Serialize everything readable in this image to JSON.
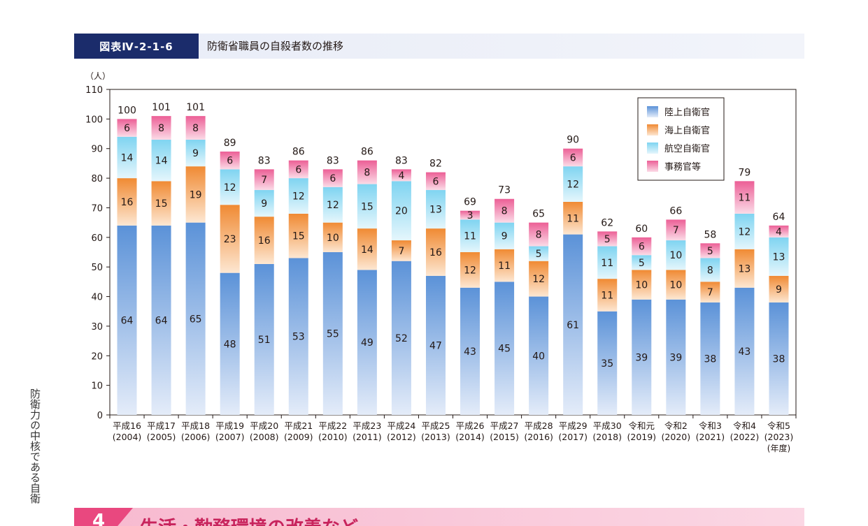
{
  "figure": {
    "badge": "図表Ⅳ-2-1-6",
    "title": "防衛省職員の自殺者数の推移"
  },
  "side_text": "防衛力の中核である自衛",
  "section": {
    "number": "4",
    "title": "生活・勤務環境の改善など"
  },
  "chart_data": {
    "type": "bar",
    "stacked": true,
    "y_unit": "（人）",
    "ylim": [
      0,
      110
    ],
    "yticks": [
      0,
      10,
      20,
      30,
      40,
      50,
      60,
      70,
      80,
      90,
      100,
      110
    ],
    "grid": false,
    "legend_position": "top-right",
    "x_suffix": "(年度)",
    "categories": [
      [
        "平成16",
        "(2004)"
      ],
      [
        "平成17",
        "(2005)"
      ],
      [
        "平成18",
        "(2006)"
      ],
      [
        "平成19",
        "(2007)"
      ],
      [
        "平成20",
        "(2008)"
      ],
      [
        "平成21",
        "(2009)"
      ],
      [
        "平成22",
        "(2010)"
      ],
      [
        "平成23",
        "(2011)"
      ],
      [
        "平成24",
        "(2012)"
      ],
      [
        "平成25",
        "(2013)"
      ],
      [
        "平成26",
        "(2014)"
      ],
      [
        "平成27",
        "(2015)"
      ],
      [
        "平成28",
        "(2016)"
      ],
      [
        "平成29",
        "(2017)"
      ],
      [
        "平成30",
        "(2018)"
      ],
      [
        "令和元",
        "(2019)"
      ],
      [
        "令和2",
        "(2020)"
      ],
      [
        "令和3",
        "(2021)"
      ],
      [
        "令和4",
        "(2022)"
      ],
      [
        "令和5",
        "(2023)"
      ]
    ],
    "series": [
      {
        "name": "陸上自衛官",
        "color_top": "#5b92d8",
        "color_bottom": "#e4ecf9",
        "values": [
          64,
          64,
          65,
          48,
          51,
          53,
          55,
          49,
          52,
          47,
          43,
          45,
          40,
          61,
          35,
          39,
          39,
          38,
          43,
          38
        ]
      },
      {
        "name": "海上自衛官",
        "color_top": "#f08a33",
        "color_bottom": "#fde7d2",
        "values": [
          16,
          15,
          19,
          23,
          16,
          15,
          10,
          14,
          7,
          16,
          12,
          11,
          12,
          11,
          11,
          10,
          10,
          7,
          13,
          9
        ]
      },
      {
        "name": "航空自衛官",
        "color_top": "#7fd4f1",
        "color_bottom": "#e5f6fc",
        "values": [
          14,
          14,
          9,
          12,
          9,
          12,
          12,
          15,
          20,
          13,
          11,
          9,
          5,
          12,
          11,
          5,
          10,
          8,
          12,
          13
        ]
      },
      {
        "name": "事務官等",
        "color_top": "#ec5f96",
        "color_bottom": "#fbdbe7",
        "values": [
          6,
          8,
          8,
          6,
          7,
          6,
          6,
          8,
          4,
          6,
          3,
          8,
          8,
          6,
          5,
          6,
          7,
          5,
          11,
          4
        ]
      }
    ],
    "totals": [
      100,
      101,
      101,
      89,
      83,
      86,
      83,
      86,
      83,
      82,
      69,
      73,
      65,
      90,
      62,
      60,
      66,
      58,
      79,
      64
    ]
  }
}
